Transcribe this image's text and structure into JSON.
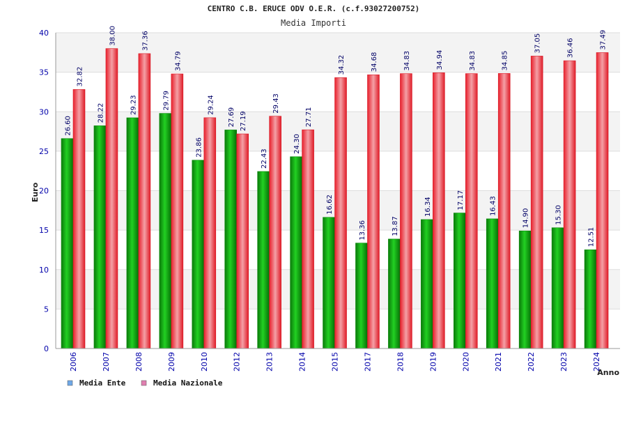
{
  "chart_data": {
    "type": "bar",
    "title": "CENTRO C.B. ERUCE ODV O.E.R. (c.f.93027200752)",
    "subtitle": "Media Importi",
    "xlabel": "Anno",
    "ylabel": "Euro",
    "ylim": [
      0,
      40
    ],
    "yticks": [
      "0",
      "5",
      "10",
      "15",
      "20",
      "25",
      "30",
      "35",
      "40"
    ],
    "grid": true,
    "legend_position": "bottom-left",
    "categories": [
      "2006",
      "2007",
      "2008",
      "2009",
      "2010",
      "2012",
      "2013",
      "2014",
      "2015",
      "2017",
      "2018",
      "2019",
      "2020",
      "2021",
      "2022",
      "2023",
      "2024"
    ],
    "series": [
      {
        "name": "Media Ente",
        "color": "#13a813",
        "legend_color": "#6fa8e8",
        "values": [
          26.6,
          28.22,
          29.23,
          29.79,
          23.86,
          27.69,
          22.43,
          24.3,
          16.62,
          13.36,
          13.87,
          16.34,
          17.17,
          16.43,
          14.9,
          15.3,
          12.51
        ],
        "labels": [
          "26.60",
          "28.22",
          "29.23",
          "29.79",
          "23.86",
          "27.69",
          "22.43",
          "24.30",
          "16.62",
          "13.36",
          "13.87",
          "16.34",
          "17.17",
          "16.43",
          "14.90",
          "15.30",
          "12.51"
        ]
      },
      {
        "name": "Media Nazionale",
        "color": "#e8313c",
        "legend_color": "#e07fb0",
        "values": [
          32.82,
          38.0,
          37.36,
          34.79,
          29.24,
          27.19,
          29.43,
          27.71,
          34.32,
          34.68,
          34.83,
          34.94,
          34.83,
          34.85,
          37.05,
          36.46,
          37.49
        ],
        "labels": [
          "32.82",
          "38.00",
          "37.36",
          "34.79",
          "29.24",
          "27.19",
          "29.43",
          "27.71",
          "34.32",
          "34.68",
          "34.83",
          "34.94",
          "34.83",
          "34.85",
          "37.05",
          "36.46",
          "37.49"
        ]
      }
    ]
  }
}
